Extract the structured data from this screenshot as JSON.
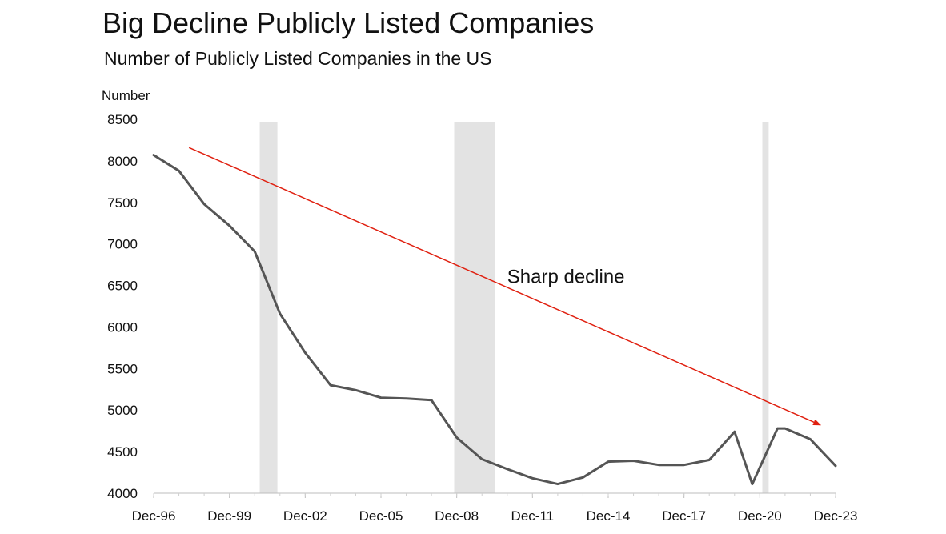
{
  "header": {
    "title": "Big Decline Publicly Listed Companies",
    "subtitle": "Number of Publicly Listed Companies in the US"
  },
  "chart_data": {
    "type": "line",
    "title": "Big Decline Publicly Listed Companies",
    "subtitle": "Number of Publicly Listed Companies in the US",
    "ylabel": "Number",
    "xlabel": "",
    "ylim": [
      4000,
      8500
    ],
    "yticks": [
      4000,
      4500,
      5000,
      5500,
      6000,
      6500,
      7000,
      7500,
      8000,
      8500
    ],
    "xlim": [
      1996,
      2023
    ],
    "xticks": [
      {
        "year": 1996,
        "label": "Dec-96"
      },
      {
        "year": 1999,
        "label": "Dec-99"
      },
      {
        "year": 2002,
        "label": "Dec-02"
      },
      {
        "year": 2005,
        "label": "Dec-05"
      },
      {
        "year": 2008,
        "label": "Dec-08"
      },
      {
        "year": 2011,
        "label": "Dec-11"
      },
      {
        "year": 2014,
        "label": "Dec-14"
      },
      {
        "year": 2017,
        "label": "Dec-17"
      },
      {
        "year": 2020,
        "label": "Dec-20"
      },
      {
        "year": 2023,
        "label": "Dec-23"
      }
    ],
    "series": [
      {
        "name": "Publicly Listed Companies",
        "color": "#555555",
        "x": [
          1996,
          1997,
          1998,
          1999,
          2000,
          2001,
          2002,
          2003,
          2004,
          2005,
          2006,
          2007,
          2008,
          2009,
          2010,
          2011,
          2012,
          2013,
          2014,
          2015,
          2016,
          2017,
          2018,
          2019,
          2019.7,
          2020.7,
          2021,
          2022,
          2023
        ],
        "values": [
          8070,
          7880,
          7480,
          7220,
          6910,
          6160,
          5690,
          5300,
          5240,
          5150,
          5140,
          5120,
          4670,
          4410,
          4290,
          4180,
          4110,
          4190,
          4380,
          4390,
          4340,
          4340,
          4400,
          4740,
          4110,
          4780,
          4780,
          4650,
          4330
        ]
      }
    ],
    "recessions": [
      {
        "start": 2000.2,
        "end": 2000.9
      },
      {
        "start": 2007.9,
        "end": 2009.5
      },
      {
        "start": 2020.1,
        "end": 2020.35
      }
    ],
    "trend_arrow": {
      "color": "#e02010",
      "from": {
        "x": 1997.4,
        "y": 8160
      },
      "to": {
        "x": 2022.4,
        "y": 4820
      }
    },
    "annotation": {
      "text": "Sharp decline",
      "x": 2010.0,
      "y": 6530
    }
  }
}
